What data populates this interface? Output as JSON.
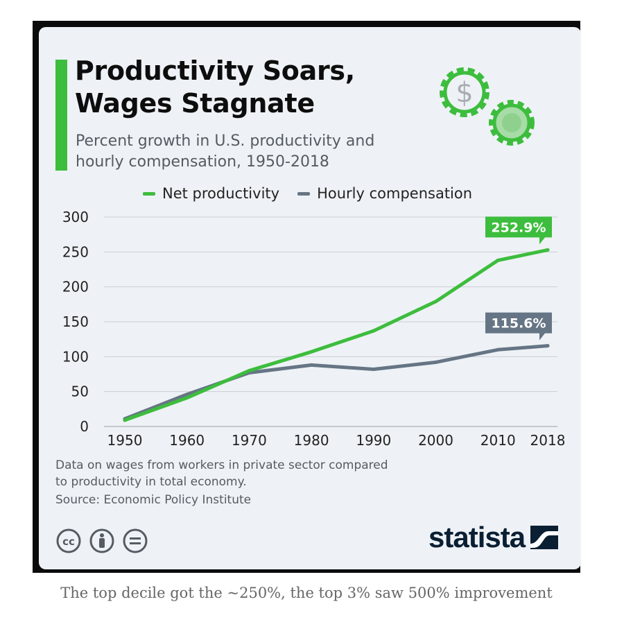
{
  "header": {
    "title": "Productivity Soars,\nWages Stagnate",
    "subtitle": "Percent growth in U.S. productivity and\nhourly compensation, 1950-2018"
  },
  "colors": {
    "productivity": "#3dbd3d",
    "compensation": "#667585",
    "grid": "#c9cdd2",
    "accent": "#3dbd3d",
    "brand": "#0b1f33"
  },
  "chart_data": {
    "type": "line",
    "title": "Productivity Soars, Wages Stagnate",
    "x": [
      "1950",
      "1960",
      "1970",
      "1980",
      "1990",
      "2000",
      "2010",
      "2018"
    ],
    "x_numeric": [
      1950,
      1960,
      1970,
      1980,
      1990,
      2000,
      2010,
      2018
    ],
    "xlim": [
      1950,
      2018
    ],
    "ylim": [
      0,
      300
    ],
    "yticks": [
      0,
      50,
      100,
      150,
      200,
      250,
      300
    ],
    "grid": true,
    "legend_position": "top",
    "series": [
      {
        "name": "Net productivity",
        "values": [
          9,
          41,
          80,
          107,
          137,
          179,
          238,
          252.9
        ],
        "end_label": "252.9%"
      },
      {
        "name": "Hourly compensation",
        "values": [
          11,
          46,
          77,
          88,
          82,
          92,
          110,
          115.6
        ],
        "end_label": "115.6%"
      }
    ]
  },
  "footer": {
    "note": "Data on wages from workers in private sector compared\nto productivity in total economy.",
    "source": "Source: Economic Policy Institute",
    "brand": "statista"
  },
  "caption": "The top decile got the ~250%, the top 3% saw 500% improvement"
}
